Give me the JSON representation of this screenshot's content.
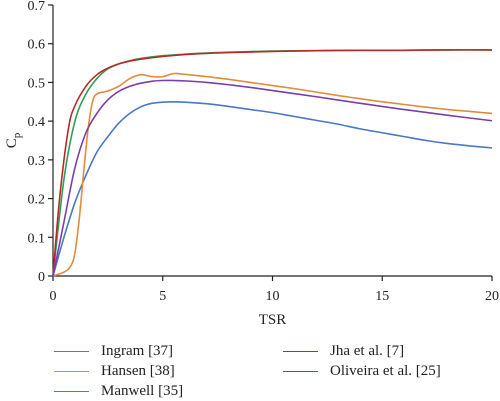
{
  "chart_data": {
    "type": "line",
    "title": "",
    "xlabel": "TSR",
    "ylabel": "C",
    "ylabel_sub": "p",
    "xlim": [
      0,
      20
    ],
    "ylim": [
      0,
      0.7
    ],
    "xticks": [
      0,
      5,
      10,
      15,
      20
    ],
    "yticks": [
      0,
      0.1,
      0.2,
      0.3,
      0.4,
      0.5,
      0.6,
      0.7
    ],
    "xtick_labels": [
      "0",
      "5",
      "10",
      "15",
      "20"
    ],
    "ytick_labels": [
      "0",
      "0.1",
      "0.2",
      "0.3",
      "0.4",
      "0.5",
      "0.6",
      "0.7"
    ],
    "grid": false,
    "legend_position": "bottom",
    "series": [
      {
        "name": "Ingram [37]",
        "color": "#4a78c4",
        "x": [
          0,
          0.5,
          1,
          1.5,
          2,
          2.5,
          3,
          3.5,
          4,
          4.5,
          5,
          5.5,
          6,
          7,
          8,
          9,
          10,
          11,
          12,
          13,
          14,
          15,
          16,
          17,
          18,
          19,
          20
        ],
        "y": [
          0,
          0.1,
          0.19,
          0.26,
          0.32,
          0.36,
          0.395,
          0.42,
          0.437,
          0.446,
          0.449,
          0.45,
          0.449,
          0.445,
          0.438,
          0.43,
          0.422,
          0.412,
          0.402,
          0.392,
          0.38,
          0.37,
          0.36,
          0.35,
          0.342,
          0.336,
          0.331
        ]
      },
      {
        "name": "Hansen [38]",
        "color": "#e08c3c",
        "x": [
          0,
          0.5,
          0.8,
          1,
          1.2,
          1.4,
          1.6,
          1.8,
          2,
          2.5,
          3,
          3.5,
          4,
          4.5,
          5,
          5.5,
          6,
          7,
          8,
          9,
          10,
          11,
          12,
          13,
          14,
          15,
          16,
          17,
          18,
          19,
          20
        ],
        "y": [
          0,
          0.01,
          0.025,
          0.06,
          0.15,
          0.27,
          0.38,
          0.45,
          0.47,
          0.478,
          0.49,
          0.51,
          0.52,
          0.515,
          0.515,
          0.523,
          0.521,
          0.515,
          0.508,
          0.5,
          0.492,
          0.484,
          0.475,
          0.466,
          0.458,
          0.45,
          0.443,
          0.436,
          0.43,
          0.425,
          0.42
        ]
      },
      {
        "name": "Manwell [35]",
        "color": "#2ca05a",
        "x": [
          0,
          0.5,
          1,
          1.5,
          2,
          2.5,
          3,
          3.5,
          4,
          5,
          6,
          7,
          8,
          10,
          12,
          14,
          16,
          18,
          20
        ],
        "y": [
          0,
          0.25,
          0.4,
          0.47,
          0.51,
          0.535,
          0.548,
          0.556,
          0.562,
          0.569,
          0.573,
          0.576,
          0.578,
          0.581,
          0.582,
          0.583,
          0.583,
          0.584,
          0.584
        ]
      },
      {
        "name": "Jha et al. [7]",
        "color": "#b82a25",
        "x": [
          0,
          0.3,
          0.7,
          1,
          1.5,
          2,
          2.5,
          3,
          3.5,
          4,
          5,
          6,
          7,
          8,
          10,
          12,
          14,
          16,
          18,
          20
        ],
        "y": [
          0,
          0.2,
          0.38,
          0.44,
          0.49,
          0.52,
          0.537,
          0.548,
          0.555,
          0.56,
          0.567,
          0.572,
          0.575,
          0.577,
          0.58,
          0.582,
          0.583,
          0.583,
          0.584,
          0.584
        ]
      },
      {
        "name": "Oliveira et al. [25]",
        "color": "#7b3ea8",
        "x": [
          0,
          0.5,
          1,
          1.5,
          2,
          2.5,
          3,
          3.5,
          4,
          4.5,
          5,
          5.5,
          6,
          7,
          8,
          9,
          10,
          12,
          14,
          16,
          18,
          20
        ],
        "y": [
          0,
          0.14,
          0.28,
          0.37,
          0.42,
          0.455,
          0.477,
          0.49,
          0.498,
          0.503,
          0.505,
          0.505,
          0.504,
          0.5,
          0.494,
          0.487,
          0.479,
          0.463,
          0.446,
          0.43,
          0.415,
          0.401
        ]
      }
    ]
  }
}
